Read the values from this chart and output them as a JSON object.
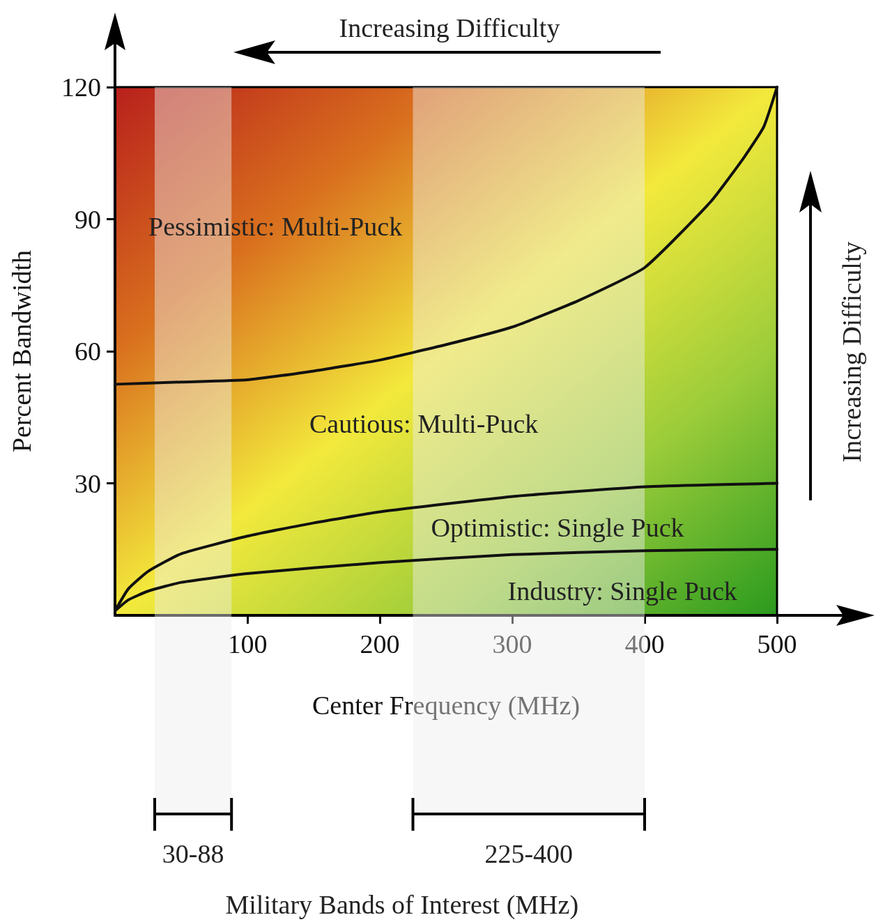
{
  "chart_data": {
    "type": "line",
    "xlabel": "Center Frequency (MHz)",
    "ylabel": "Percent Bandwidth",
    "xlim": [
      0,
      500
    ],
    "xticks": [
      100,
      200,
      300,
      400,
      500
    ],
    "ylim": [
      0,
      120
    ],
    "yticks": [
      30,
      60,
      90,
      120
    ],
    "grid": false,
    "marker": "none",
    "line_style": "solid",
    "series": [
      {
        "color": "#111111",
        "x": [
          0,
          50,
          100,
          150,
          200,
          250,
          300,
          350,
          400,
          450,
          475,
          490,
          500
        ],
        "values": [
          52.5,
          53,
          53.5,
          55.5,
          58,
          61.5,
          65.5,
          71.5,
          79,
          94,
          104,
          111,
          120
        ]
      },
      {
        "color": "#111111",
        "x": [
          0,
          10,
          25,
          50,
          100,
          150,
          200,
          300,
          400,
          500
        ],
        "values": [
          1,
          6,
          10,
          14,
          18,
          21,
          23.5,
          27,
          29.2,
          30
        ]
      },
      {
        "color": "#111111",
        "x": [
          0,
          10,
          25,
          50,
          100,
          200,
          300,
          400,
          500
        ],
        "values": [
          1,
          3.5,
          5.5,
          7.5,
          9.5,
          12,
          13.8,
          14.7,
          15
        ]
      }
    ],
    "bands": [
      {
        "axis": "x",
        "from": 30,
        "to": 88,
        "label": "30-88",
        "color": "#eeeeee"
      },
      {
        "axis": "x",
        "from": 225,
        "to": 400,
        "label": "225-400",
        "color": "#eeeeee"
      }
    ],
    "annotations": [
      "Increasing Difficulty",
      "Increasing Difficulty",
      "Pessimistic: Multi-Puck",
      "Cautious: Multi-Puck",
      "Optimistic: Single Puck",
      "Industry: Single Puck",
      "Military Bands of Interest (MHz)"
    ]
  }
}
